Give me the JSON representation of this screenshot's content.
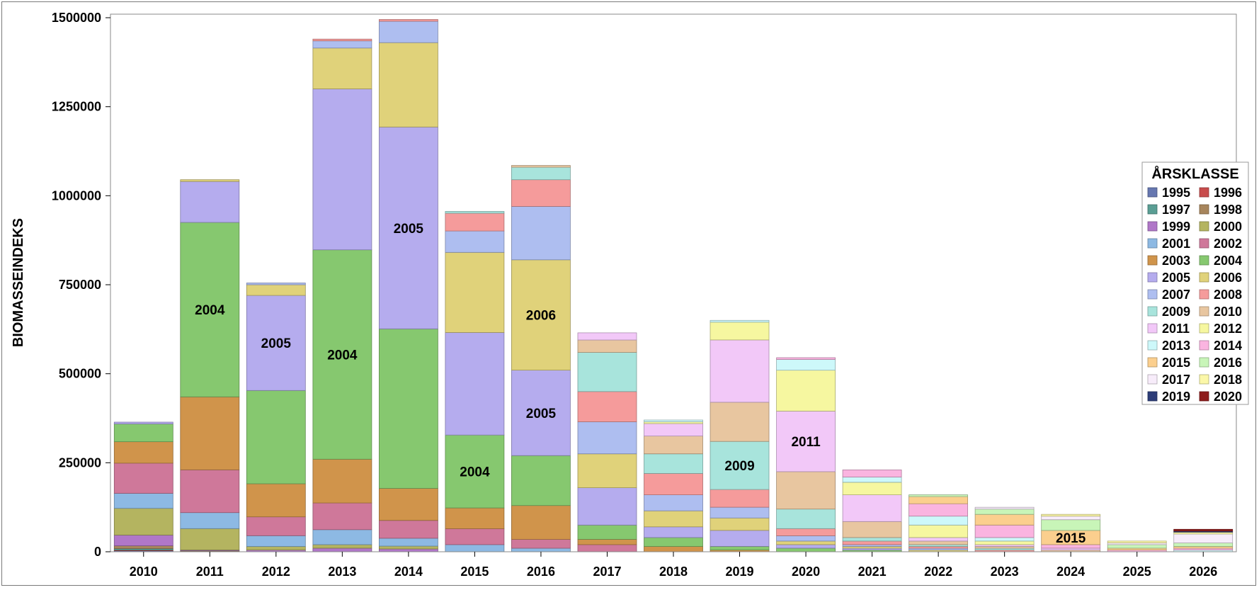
{
  "chart_data": {
    "type": "bar",
    "stacked": true,
    "ylabel": "BIOMASSEINDEKS",
    "xlabel": "",
    "ylim": [
      0,
      1500000
    ],
    "yticks": [
      0,
      250000,
      500000,
      750000,
      1000000,
      1250000,
      1500000
    ],
    "categories": [
      "2010",
      "2011",
      "2012",
      "2013",
      "2014",
      "2015",
      "2016",
      "2017",
      "2018",
      "2019",
      "2020",
      "2021",
      "2022",
      "2023",
      "2024",
      "2025",
      "2026"
    ],
    "legend": {
      "title": "ÅRSKLASSE",
      "position": "right"
    },
    "series": [
      {
        "name": "1995",
        "color": "#6677b0",
        "values": [
          3000,
          0,
          0,
          0,
          0,
          0,
          0,
          0,
          0,
          0,
          0,
          0,
          0,
          0,
          0,
          0,
          0
        ]
      },
      {
        "name": "1996",
        "color": "#c84c4c",
        "values": [
          2000,
          0,
          0,
          0,
          0,
          0,
          0,
          0,
          0,
          0,
          0,
          0,
          0,
          0,
          0,
          0,
          0
        ]
      },
      {
        "name": "1997",
        "color": "#5a9e94",
        "values": [
          4000,
          1000,
          0,
          0,
          0,
          0,
          0,
          0,
          0,
          0,
          0,
          0,
          0,
          0,
          0,
          0,
          0
        ]
      },
      {
        "name": "1998",
        "color": "#a7855c",
        "values": [
          8000,
          2000,
          0,
          0,
          0,
          0,
          0,
          0,
          0,
          0,
          0,
          0,
          0,
          0,
          0,
          0,
          0
        ]
      },
      {
        "name": "1999",
        "color": "#b077c8",
        "values": [
          30000,
          2000,
          5000,
          10000,
          8000,
          0,
          0,
          0,
          0,
          0,
          0,
          0,
          0,
          0,
          0,
          0,
          0
        ]
      },
      {
        "name": "2000",
        "color": "#b4b460",
        "values": [
          75000,
          60000,
          10000,
          10000,
          8000,
          0,
          0,
          0,
          0,
          0,
          0,
          0,
          0,
          0,
          0,
          0,
          0
        ]
      },
      {
        "name": "2001",
        "color": "#8db9e3",
        "values": [
          42000,
          45000,
          30000,
          42000,
          22000,
          20000,
          10000,
          0,
          0,
          0,
          0,
          0,
          0,
          0,
          0,
          0,
          0
        ]
      },
      {
        "name": "2002",
        "color": "#cf789a",
        "values": [
          85000,
          120000,
          53000,
          75000,
          50000,
          45000,
          25000,
          20000,
          0,
          0,
          0,
          0,
          0,
          0,
          0,
          0,
          0
        ]
      },
      {
        "name": "2003",
        "color": "#d0944b",
        "values": [
          60000,
          205000,
          93000,
          123000,
          90000,
          58000,
          95000,
          15000,
          15000,
          5000,
          0,
          0,
          0,
          0,
          0,
          0,
          0
        ]
      },
      {
        "name": "2004",
        "color": "#86c86f",
        "values": [
          50000,
          490000,
          262000,
          588000,
          448000,
          205000,
          140000,
          40000,
          25000,
          10000,
          10000,
          5000,
          0,
          0,
          0,
          0,
          0
        ]
      },
      {
        "name": "2005",
        "color": "#b5acee",
        "values": [
          5000,
          115000,
          267000,
          452000,
          567000,
          288000,
          240000,
          105000,
          30000,
          45000,
          10000,
          5000,
          0,
          0,
          0,
          0,
          0
        ]
      },
      {
        "name": "2006",
        "color": "#e0d27a",
        "values": [
          0,
          5000,
          30000,
          115000,
          237000,
          225000,
          310000,
          95000,
          45000,
          35000,
          10000,
          5000,
          5000,
          0,
          0,
          0,
          0
        ]
      },
      {
        "name": "2007",
        "color": "#aebef0",
        "values": [
          0,
          0,
          5000,
          20000,
          60000,
          60000,
          150000,
          90000,
          45000,
          30000,
          15000,
          5000,
          5000,
          0,
          0,
          0,
          0
        ]
      },
      {
        "name": "2008",
        "color": "#f59b9b",
        "values": [
          0,
          0,
          0,
          5000,
          5000,
          50000,
          75000,
          85000,
          60000,
          50000,
          20000,
          10000,
          5000,
          5000,
          0,
          0,
          0
        ]
      },
      {
        "name": "2009",
        "color": "#a8e4dc",
        "values": [
          0,
          0,
          0,
          0,
          0,
          5000,
          35000,
          110000,
          55000,
          135000,
          55000,
          10000,
          5000,
          5000,
          0,
          0,
          0
        ]
      },
      {
        "name": "2010",
        "color": "#e8c6a0",
        "values": [
          0,
          0,
          0,
          0,
          0,
          0,
          5000,
          35000,
          50000,
          110000,
          105000,
          45000,
          10000,
          5000,
          5000,
          0,
          0
        ]
      },
      {
        "name": "2011",
        "color": "#f2c8f8",
        "values": [
          0,
          0,
          0,
          0,
          0,
          0,
          0,
          20000,
          35000,
          175000,
          170000,
          75000,
          10000,
          5000,
          5000,
          0,
          0
        ]
      },
      {
        "name": "2012",
        "color": "#f6f7a0",
        "values": [
          0,
          0,
          0,
          0,
          0,
          0,
          0,
          0,
          5000,
          50000,
          115000,
          35000,
          35000,
          10000,
          0,
          0,
          0
        ]
      },
      {
        "name": "2013",
        "color": "#cdf8fa",
        "values": [
          0,
          0,
          0,
          0,
          0,
          0,
          0,
          0,
          5000,
          5000,
          30000,
          15000,
          25000,
          10000,
          0,
          0,
          5000
        ]
      },
      {
        "name": "2014",
        "color": "#fab4e0",
        "values": [
          0,
          0,
          0,
          0,
          0,
          0,
          0,
          0,
          0,
          0,
          5000,
          20000,
          35000,
          35000,
          10000,
          5000,
          5000
        ]
      },
      {
        "name": "2015",
        "color": "#fbcf8e",
        "values": [
          0,
          0,
          0,
          0,
          0,
          0,
          0,
          0,
          0,
          0,
          0,
          0,
          20000,
          30000,
          40000,
          5000,
          5000
        ]
      },
      {
        "name": "2016",
        "color": "#c8f5b8",
        "values": [
          0,
          0,
          0,
          0,
          0,
          0,
          0,
          0,
          0,
          0,
          0,
          0,
          5000,
          15000,
          30000,
          10000,
          10000
        ]
      },
      {
        "name": "2017",
        "color": "#f7ecfa",
        "values": [
          0,
          0,
          0,
          0,
          0,
          0,
          0,
          0,
          0,
          0,
          0,
          0,
          0,
          5000,
          10000,
          5000,
          25000
        ]
      },
      {
        "name": "2018",
        "color": "#fbf7a8",
        "values": [
          0,
          0,
          0,
          0,
          0,
          0,
          0,
          0,
          0,
          0,
          0,
          0,
          0,
          0,
          5000,
          5000,
          5000
        ]
      },
      {
        "name": "2019",
        "color": "#2d3d78",
        "values": [
          0,
          0,
          0,
          0,
          0,
          0,
          0,
          0,
          0,
          0,
          0,
          0,
          0,
          0,
          0,
          0,
          3000
        ]
      },
      {
        "name": "2020",
        "color": "#8e1b1b",
        "values": [
          0,
          0,
          0,
          0,
          0,
          0,
          0,
          0,
          0,
          0,
          0,
          0,
          0,
          0,
          0,
          0,
          5000
        ]
      }
    ],
    "annotations": [
      {
        "category": "2011",
        "series": "2004",
        "text": "2004"
      },
      {
        "category": "2012",
        "series": "2005",
        "text": "2005"
      },
      {
        "category": "2013",
        "series": "2004",
        "text": "2004"
      },
      {
        "category": "2014",
        "series": "2005",
        "text": "2005"
      },
      {
        "category": "2015",
        "series": "2004",
        "text": "2004"
      },
      {
        "category": "2016",
        "series": "2006",
        "text": "2006"
      },
      {
        "category": "2016",
        "series": "2005",
        "text": "2005"
      },
      {
        "category": "2019",
        "series": "2009",
        "text": "2009"
      },
      {
        "category": "2020",
        "series": "2011",
        "text": "2011"
      },
      {
        "category": "2024",
        "series": "2015",
        "text": "2015"
      }
    ]
  }
}
